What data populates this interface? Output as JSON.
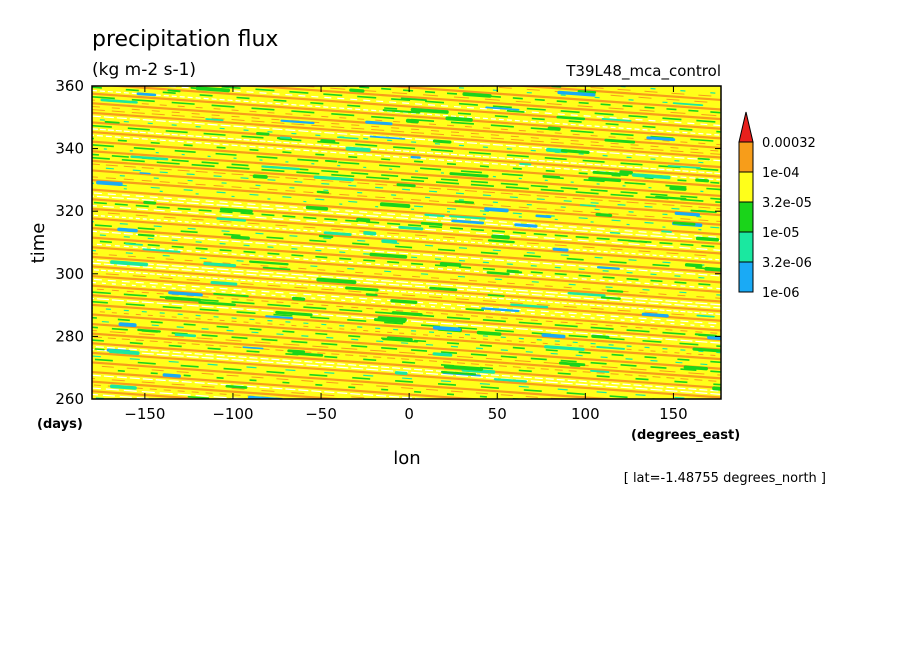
{
  "chart_data": {
    "type": "heatmap",
    "title": "precipitation flux",
    "subtitle": "(kg m-2 s-1)",
    "run_label": "T39L48_mca_control",
    "xlabel": "lon",
    "ylabel": "time",
    "x_unit": "(degrees_east)",
    "y_unit": "(days)",
    "footnote": "[ lat=-1.48755 degrees_north ]",
    "xlim": [
      -180,
      177
    ],
    "ylim": [
      260,
      360
    ],
    "x_ticks": [
      -150,
      -100,
      -50,
      0,
      50,
      100,
      150
    ],
    "y_ticks": [
      260,
      280,
      300,
      320,
      340,
      360
    ],
    "colorbar": {
      "labels": [
        "0.00032",
        "1e-04",
        "3.2e-05",
        "1e-05",
        "3.2e-06",
        "1e-06"
      ],
      "colors": [
        "#e8201c",
        "#f79d1a",
        "#ffff1a",
        "#1ad41a",
        "#1ae8a0",
        "#1aaaf5"
      ]
    },
    "band_slope_days_per_deg": -0.04,
    "palette": {
      "white": "#ffffff"
    }
  }
}
